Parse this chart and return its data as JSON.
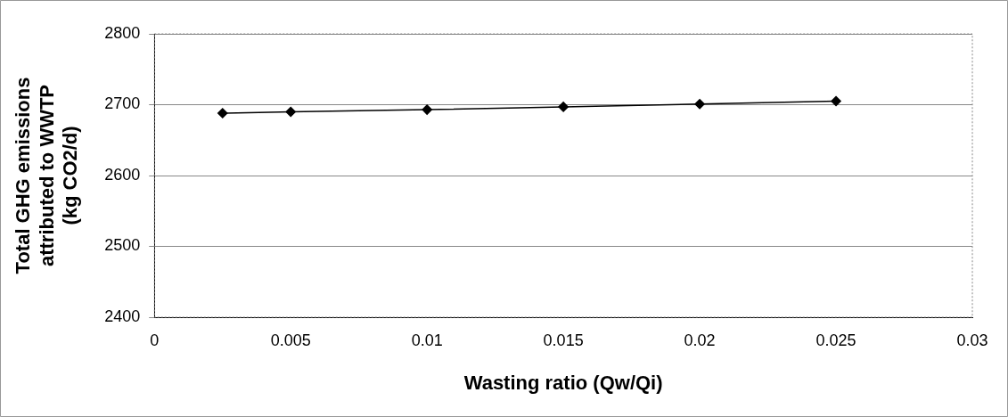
{
  "chart_data": {
    "type": "line",
    "xlabel": "Wasting ratio (Qw/Qi)",
    "ylabel": "Total GHG emissions\nattributed to WWTP\n(kg CO2/d)",
    "x": [
      0.0025,
      0.005,
      0.01,
      0.015,
      0.02,
      0.025
    ],
    "series": [
      {
        "color": "#000000",
        "values": [
          2688,
          2690,
          2693,
          2697,
          2701,
          2705
        ]
      }
    ],
    "xlim": [
      0,
      0.03
    ],
    "xticks": [
      0,
      0.005,
      0.01,
      0.015,
      0.02,
      0.025,
      0.03
    ],
    "ylim": [
      2400,
      2800
    ],
    "yticks": [
      2400,
      2500,
      2600,
      2700,
      2800
    ],
    "grid": "y",
    "marker": "diamond",
    "line_style": "solid",
    "legend": false
  }
}
